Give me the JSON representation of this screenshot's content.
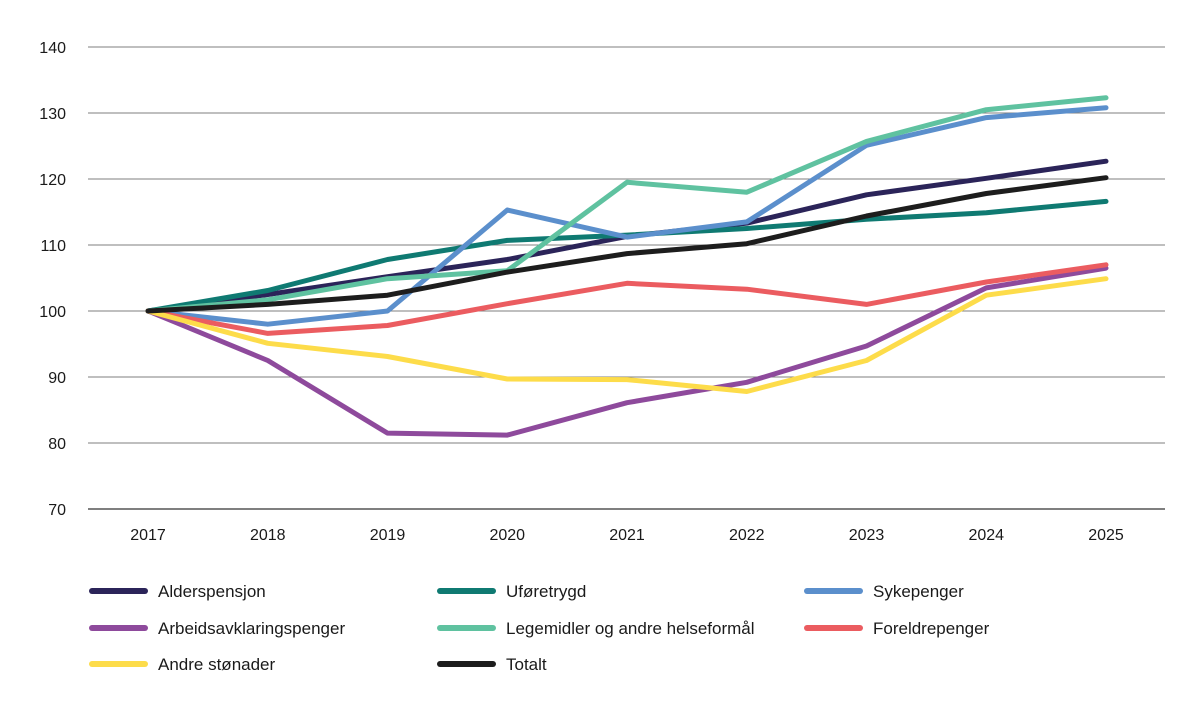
{
  "chart_data": {
    "type": "line",
    "title": "",
    "xlabel": "",
    "ylabel": "",
    "ylim": [
      70,
      140
    ],
    "yticks": [
      70,
      80,
      90,
      100,
      110,
      120,
      130,
      140
    ],
    "categories": [
      "2017",
      "2018",
      "2019",
      "2020",
      "2021",
      "2022",
      "2023",
      "2024",
      "2025"
    ],
    "grid": "horizontal",
    "legend_position": "bottom",
    "series": [
      {
        "name": "Alderspensjon",
        "color": "#2b2459",
        "values": [
          100,
          102.5,
          105.2,
          107.8,
          111.3,
          113.3,
          117.6,
          120.1,
          122.7
        ]
      },
      {
        "name": "Uføretrygd",
        "color": "#0f7a72",
        "values": [
          100,
          103.1,
          107.8,
          110.7,
          111.5,
          112.5,
          113.9,
          114.9,
          116.6
        ]
      },
      {
        "name": "Sykepenger",
        "color": "#5b8fcc",
        "values": [
          100,
          98.0,
          100.0,
          115.3,
          111.2,
          113.5,
          125.1,
          129.3,
          130.8
        ]
      },
      {
        "name": "Arbeidsavklaringspenger",
        "color": "#8e4a9c",
        "values": [
          100,
          92.5,
          81.5,
          81.2,
          86.1,
          89.2,
          94.7,
          103.5,
          106.5
        ]
      },
      {
        "name": "Legemidler og andre helseformål",
        "color": "#5fc2a0",
        "values": [
          100,
          101.7,
          104.9,
          106.1,
          119.5,
          118.0,
          125.7,
          130.5,
          132.3
        ]
      },
      {
        "name": "Foreldrepenger",
        "color": "#eb5c60",
        "values": [
          100,
          96.6,
          97.8,
          101.1,
          104.2,
          103.3,
          101.0,
          104.4,
          107.0
        ]
      },
      {
        "name": "Andre stønader",
        "color": "#fddc4a",
        "values": [
          100,
          95.1,
          93.1,
          89.7,
          89.6,
          87.8,
          92.5,
          102.4,
          104.9
        ]
      },
      {
        "name": "Totalt",
        "color": "#1d1d1d",
        "values": [
          100,
          101.0,
          102.4,
          105.9,
          108.7,
          110.2,
          114.4,
          117.8,
          120.2
        ]
      }
    ]
  }
}
